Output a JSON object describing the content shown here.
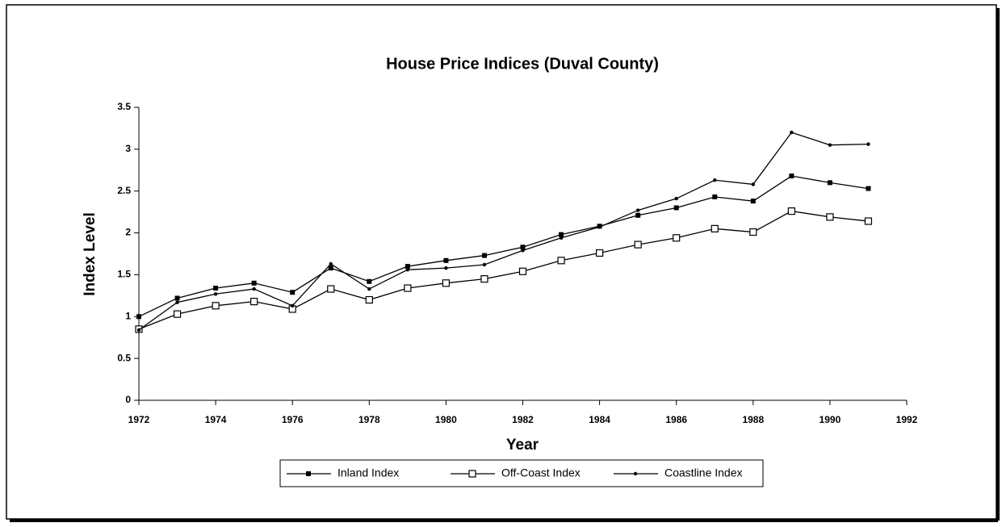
{
  "chart_data": {
    "type": "line",
    "title": "House Price Indices (Duval County)",
    "x_label": "Year",
    "y_label": "Index Level",
    "x": [
      1972,
      1973,
      1974,
      1975,
      1976,
      1977,
      1978,
      1979,
      1980,
      1981,
      1982,
      1983,
      1984,
      1985,
      1986,
      1987,
      1988,
      1989,
      1990,
      1991
    ],
    "series": [
      {
        "name": "Inland Index",
        "color": "#000000",
        "marker": "filled-square",
        "values": [
          1.0,
          1.22,
          1.34,
          1.4,
          1.29,
          1.58,
          1.42,
          1.6,
          1.67,
          1.73,
          1.83,
          1.98,
          2.08,
          2.21,
          2.3,
          2.43,
          2.38,
          2.68,
          2.6,
          2.53
        ]
      },
      {
        "name": "Off-Coast Index",
        "color": "#000000",
        "marker": "hollow-square",
        "values": [
          0.85,
          1.03,
          1.13,
          1.18,
          1.09,
          1.33,
          1.2,
          1.34,
          1.4,
          1.45,
          1.54,
          1.67,
          1.76,
          1.86,
          1.94,
          2.05,
          2.01,
          2.26,
          2.19,
          2.14
        ]
      },
      {
        "name": "Coastline Index",
        "color": "#000000",
        "marker": "dot",
        "values": [
          0.84,
          1.17,
          1.27,
          1.33,
          1.13,
          1.63,
          1.33,
          1.56,
          1.58,
          1.62,
          1.79,
          1.94,
          2.07,
          2.27,
          2.41,
          2.63,
          2.58,
          3.2,
          3.05,
          3.06
        ]
      }
    ],
    "xlim": [
      1972,
      1992
    ],
    "xticks": [
      1972,
      1974,
      1976,
      1978,
      1980,
      1982,
      1984,
      1986,
      1988,
      1990,
      1992
    ],
    "ylim": [
      0,
      3.5
    ],
    "yticks": [
      0,
      0.5,
      1,
      1.5,
      2,
      2.5,
      3,
      3.5
    ],
    "grid": false,
    "legend": "bottom"
  }
}
